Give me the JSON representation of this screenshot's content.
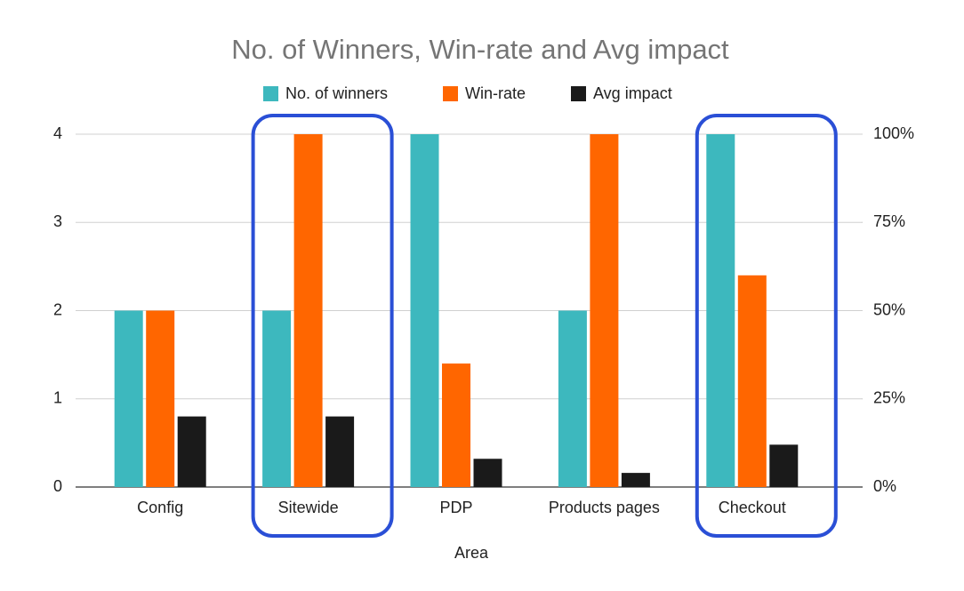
{
  "chart_data": {
    "type": "bar",
    "title": "No. of Winners, Win-rate and Avg impact",
    "x_label": "Area",
    "categories": [
      "Config",
      "Sitewide",
      "PDP",
      "Products pages",
      "Checkout"
    ],
    "series": [
      {
        "name": "No. of winners",
        "color": "#3db8be",
        "values": [
          2,
          2,
          4,
          2,
          4
        ]
      },
      {
        "name": "Win-rate",
        "color": "#ff6600",
        "axis": "y2",
        "values": [
          50,
          100,
          35,
          100,
          60
        ]
      },
      {
        "name": "Avg impact",
        "color": "#1a1a1a",
        "axis": "y2",
        "values": [
          20,
          20,
          8,
          4,
          12
        ]
      }
    ],
    "ylim": [
      0,
      4
    ],
    "yticks": [
      0,
      1,
      2,
      3,
      4
    ],
    "y2lim": [
      0,
      100
    ],
    "y2ticks": [
      {
        "value": 0,
        "label": "0%"
      },
      {
        "value": 25,
        "label": "25%"
      },
      {
        "value": 50,
        "label": "50%"
      },
      {
        "value": 75,
        "label": "75%"
      },
      {
        "value": 100,
        "label": "100%"
      }
    ],
    "grid": true,
    "legend": "top",
    "highlight": [
      1,
      4
    ],
    "highlight_color": "#2a4fd6"
  }
}
